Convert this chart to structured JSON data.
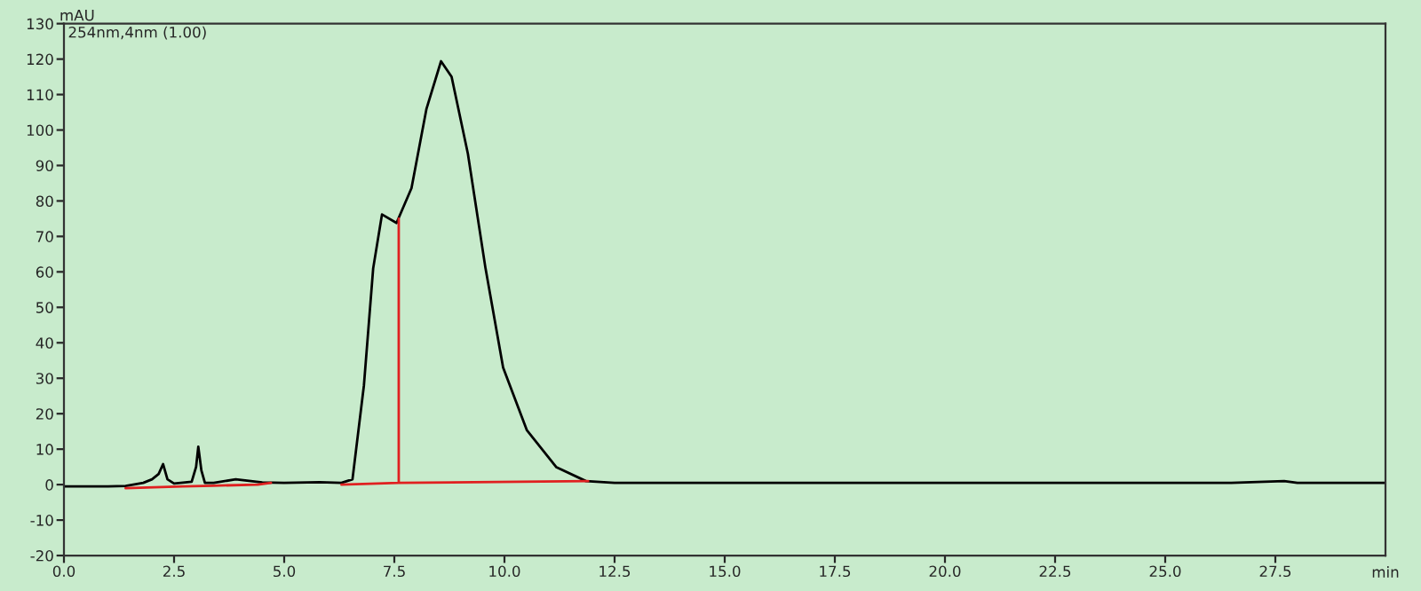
{
  "chart_data": {
    "type": "line",
    "xlabel": "min",
    "ylabel": "mAU",
    "annotations": [
      "254nm,4nm (1.00)"
    ],
    "series": [
      {
        "color": "#000000",
        "x": [
          0,
          1.0,
          1.4,
          1.8,
          2.0,
          2.15,
          2.25,
          2.35,
          2.5,
          2.9,
          3.0,
          3.05,
          3.12,
          3.2,
          3.4,
          3.9,
          4.5,
          5.0,
          5.8,
          6.3,
          6.55,
          6.81,
          7.02,
          7.22,
          7.55,
          7.89,
          8.23,
          8.56,
          8.8,
          9.17,
          9.57,
          9.97,
          10.51,
          11.18,
          11.85,
          12.5,
          26.5,
          27.7,
          28.0,
          30
        ],
        "values": [
          -0.5,
          -0.5,
          -0.4,
          0.5,
          1.5,
          3,
          5.8,
          1.5,
          0.3,
          0.8,
          5,
          10.7,
          4,
          0.5,
          0.5,
          1.5,
          0.6,
          0.5,
          0.7,
          0.5,
          1.5,
          28,
          61,
          76.2,
          73.8,
          83.6,
          106,
          119.4,
          115,
          93.3,
          61,
          33,
          15.3,
          4.9,
          1,
          0.5,
          0.5,
          1,
          0.5,
          0.5
        ]
      },
      {
        "color": "#e02020",
        "x": [
          1.4,
          2.7,
          3.4,
          4.4,
          4.7,
          4.75,
          6.3,
          7.6,
          7.6,
          7.6,
          11.9
        ],
        "values": [
          -1,
          -0.5,
          -0.3,
          0,
          0.5,
          null,
          0,
          0.5,
          75,
          0.5,
          1
        ]
      }
    ],
    "xlim": [
      0,
      30
    ],
    "ylim": [
      -20,
      130
    ],
    "xticks": [
      {
        "value": 0,
        "label": "0.0"
      },
      2.5,
      {
        "value": 5,
        "label": "5.0"
      },
      7.5,
      {
        "value": 10,
        "label": "10.0"
      },
      12.5,
      {
        "value": 15,
        "label": "15.0"
      },
      17.5,
      {
        "value": 20,
        "label": "20.0"
      },
      22.5,
      {
        "value": 25,
        "label": "25.0"
      },
      27.5
    ],
    "yticks": [
      -20,
      -10,
      0,
      10,
      20,
      30,
      40,
      50,
      60,
      70,
      80,
      90,
      100,
      110,
      120,
      130
    ],
    "grid": false,
    "legend": false
  }
}
